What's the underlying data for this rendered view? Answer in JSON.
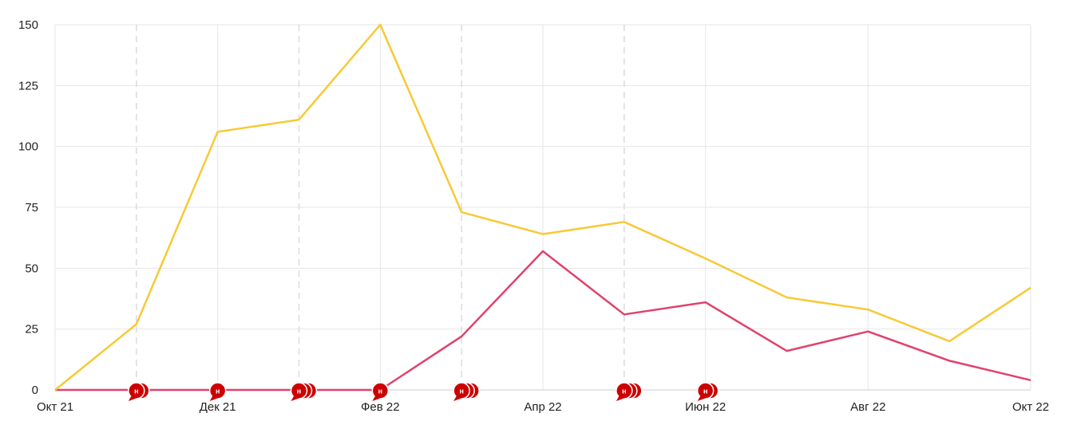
{
  "chart_data": {
    "type": "line",
    "title": "",
    "xlabel": "",
    "ylabel": "",
    "x": [
      "2021-10",
      "2021-11",
      "2021-12",
      "2022-01",
      "2022-02",
      "2022-03",
      "2022-04",
      "2022-05",
      "2022-06",
      "2022-07",
      "2022-08",
      "2022-09",
      "2022-10"
    ],
    "x_tick_labels": [
      "Окт 21",
      "",
      "Дек 21",
      "",
      "Фев 22",
      "",
      "Апр 22",
      "",
      "Июн 22",
      "",
      "Авг 22",
      "",
      "Окт 22"
    ],
    "y_ticks": [
      0,
      25,
      50,
      75,
      100,
      125,
      150
    ],
    "ylim": [
      0,
      150
    ],
    "grid": true,
    "legend": "none",
    "series": [
      {
        "color": "#f7c936",
        "values": [
          0,
          27,
          106,
          111,
          150,
          73,
          64,
          69,
          54,
          38,
          33,
          20,
          42
        ]
      },
      {
        "color": "#e0426b",
        "values": [
          0,
          0,
          0,
          0,
          0,
          22,
          57,
          31,
          36,
          16,
          24,
          12,
          4
        ]
      }
    ],
    "event_lines": [
      "2021-11",
      "2022-01",
      "2022-03",
      "2022-05"
    ],
    "event_markers": [
      {
        "x": "2021-11",
        "count": 2,
        "label": "н"
      },
      {
        "x": "2021-12",
        "count": 1,
        "label": "н"
      },
      {
        "x": "2022-01",
        "count": 3,
        "label": "н"
      },
      {
        "x": "2022-02",
        "count": 1,
        "label": "н"
      },
      {
        "x": "2022-03",
        "count": 3,
        "label": "н"
      },
      {
        "x": "2022-05",
        "count": 3,
        "label": "н"
      },
      {
        "x": "2022-06",
        "count": 2,
        "label": "н"
      }
    ],
    "marker_color": "#cc0000"
  }
}
